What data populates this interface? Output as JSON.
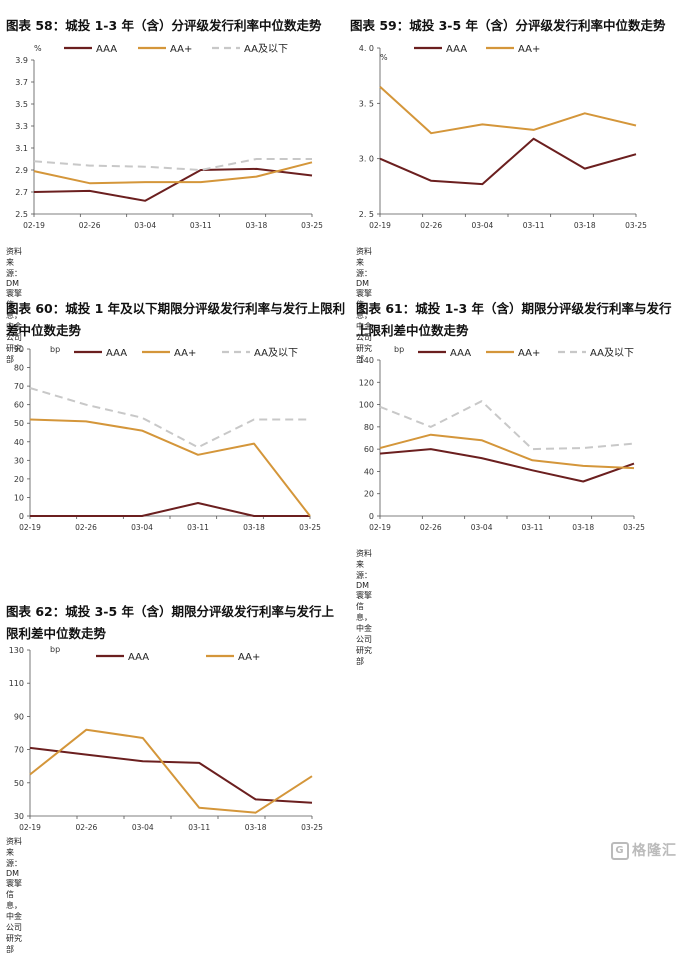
{
  "colors": {
    "AAA": "#6b1f1f",
    "AA+": "#d4963a",
    "AA_and_below": "#c8c8c8",
    "axis": "#555555"
  },
  "watermark": "格隆汇",
  "chart_data": [
    {
      "id": "c58",
      "type": "line",
      "title": "图表 58：城投 1-3 年（含）分评级发行利率中位数走势",
      "unit": "%",
      "source": "资料来源：DM 寰擎信息，中金公司研究部",
      "categories": [
        "02-19",
        "02-26",
        "03-04",
        "03-11",
        "03-18",
        "03-25"
      ],
      "ylim": [
        2.5,
        3.9
      ],
      "yticks": [
        2.5,
        2.7,
        2.9,
        3.1,
        3.3,
        3.5,
        3.7,
        3.9
      ],
      "ytick_labels": [
        "2.5",
        "2.7",
        "2.9",
        "3.1",
        "3.3",
        "3.5",
        "3.7",
        "3.9"
      ],
      "legend": [
        "AAA",
        "AA+",
        "AA及以下"
      ],
      "series": [
        {
          "name": "AAA",
          "values": [
            2.7,
            2.71,
            2.62,
            2.9,
            2.91,
            2.85
          ]
        },
        {
          "name": "AA+",
          "values": [
            2.89,
            2.78,
            2.79,
            2.79,
            2.84,
            2.97
          ]
        },
        {
          "name": "AA及以下",
          "values": [
            2.98,
            2.94,
            2.93,
            2.9,
            3.0,
            3.0
          ]
        }
      ]
    },
    {
      "id": "c59",
      "type": "line",
      "title": "图表 59：城投 3-5 年（含）分评级发行利率中位数走势",
      "unit": "%",
      "source": "资料来源：DM 寰擎信息，中金公司研究部",
      "categories": [
        "02-19",
        "02-26",
        "03-04",
        "03-11",
        "03-18",
        "03-25"
      ],
      "ylim": [
        2.5,
        4.0
      ],
      "yticks": [
        2.5,
        3.0,
        3.5,
        4.0
      ],
      "ytick_labels": [
        "2. 5",
        "3. 0",
        "3. 5",
        "4. 0"
      ],
      "legend": [
        "AAA",
        "AA+"
      ],
      "series": [
        {
          "name": "AAA",
          "values": [
            3.0,
            2.8,
            2.77,
            3.18,
            2.91,
            3.04
          ]
        },
        {
          "name": "AA+",
          "values": [
            3.65,
            3.23,
            3.31,
            3.26,
            3.41,
            3.3
          ]
        }
      ]
    },
    {
      "id": "c60",
      "type": "line",
      "title": "图表 60：城投 1 年及以下期限分评级发行利率与发行上限利差中位数走势",
      "unit": "bp",
      "source": "",
      "categories": [
        "02-19",
        "02-26",
        "03-04",
        "03-11",
        "03-18",
        "03-25"
      ],
      "ylim": [
        0,
        90
      ],
      "yticks": [
        0,
        10,
        20,
        30,
        40,
        50,
        60,
        70,
        80,
        90
      ],
      "ytick_labels": [
        "0",
        "10",
        "20",
        "30",
        "40",
        "50",
        "60",
        "70",
        "80",
        "90"
      ],
      "legend": [
        "AAA",
        "AA+",
        "AA及以下"
      ],
      "series": [
        {
          "name": "AAA",
          "values": [
            0,
            0,
            0,
            7,
            0,
            0
          ]
        },
        {
          "name": "AA+",
          "values": [
            52,
            51,
            46,
            33,
            39,
            0
          ]
        },
        {
          "name": "AA及以下",
          "values": [
            69,
            60,
            53,
            37,
            52,
            52
          ]
        }
      ]
    },
    {
      "id": "c61",
      "type": "line",
      "title": "图表 61：城投 1-3 年（含）期限分评级发行利率与发行上限利差中位数走势",
      "unit": "bp",
      "source": "资料来源：DM 寰擎信息，中金公司研究部",
      "categories": [
        "02-19",
        "02-26",
        "03-04",
        "03-11",
        "03-18",
        "03-25"
      ],
      "ylim": [
        0,
        140
      ],
      "yticks": [
        0,
        20,
        40,
        60,
        80,
        100,
        120,
        140
      ],
      "ytick_labels": [
        "0",
        "20",
        "40",
        "60",
        "80",
        "100",
        "120",
        "140"
      ],
      "legend": [
        "AAA",
        "AA+",
        "AA及以下"
      ],
      "series": [
        {
          "name": "AAA",
          "values": [
            56,
            60,
            52,
            41,
            31,
            47
          ]
        },
        {
          "name": "AA+",
          "values": [
            61,
            73,
            68,
            50,
            45,
            43
          ]
        },
        {
          "name": "AA及以下",
          "values": [
            98,
            80,
            103,
            60,
            61,
            65
          ]
        }
      ]
    },
    {
      "id": "c62",
      "type": "line",
      "title": "图表 62：城投 3-5 年（含）期限分评级发行利率与发行上限利差中位数走势",
      "unit": "bp",
      "source": "资料来源：DM 寰擎信息，中金公司研究部",
      "categories": [
        "02-19",
        "02-26",
        "03-04",
        "03-11",
        "03-18",
        "03-25"
      ],
      "ylim": [
        30,
        130
      ],
      "yticks": [
        30,
        50,
        70,
        90,
        110,
        130
      ],
      "ytick_labels": [
        "30",
        "50",
        "70",
        "90",
        "110",
        "130"
      ],
      "legend": [
        "AAA",
        "AA+"
      ],
      "series": [
        {
          "name": "AAA",
          "values": [
            71,
            67,
            63,
            62,
            40,
            38
          ]
        },
        {
          "name": "AA+",
          "values": [
            55,
            82,
            77,
            35,
            32,
            54
          ]
        }
      ]
    }
  ]
}
